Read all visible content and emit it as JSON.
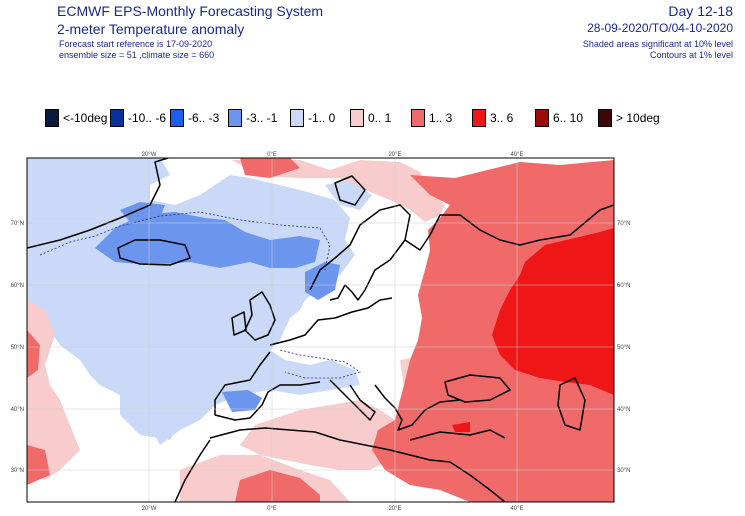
{
  "header": {
    "title": "ECMWF EPS-Monthly Forecasting System",
    "subtitle": "2-meter Temperature anomaly",
    "forecast_ref": "Forecast start reference is 17-09-2020",
    "ensemble": "ensemble size = 51  ,climate size = 660",
    "day_range": "Day 12-18",
    "date_range": "28-09-2020/TO/04-10-2020",
    "significance": "Shaded areas significant at 10% level",
    "contours": "Contours at 1% level"
  },
  "legend": [
    {
      "label": "<-10deg",
      "color": "#0b1a3a"
    },
    {
      "label": "-10.. -6",
      "color": "#0a2f9e"
    },
    {
      "label": "-6.. -3",
      "color": "#1c5ff0"
    },
    {
      "label": "-3.. -1",
      "color": "#6c95ee"
    },
    {
      "label": "-1.. 0",
      "color": "#c9d9f7"
    },
    {
      "label": "0.. 1",
      "color": "#f8cccc"
    },
    {
      "label": "1.. 3",
      "color": "#f06a6a"
    },
    {
      "label": "3.. 6",
      "color": "#ee1616"
    },
    {
      "label": "6.. 10",
      "color": "#9c0a0a"
    },
    {
      "label": "> 10deg",
      "color": "#3c0707"
    }
  ],
  "map": {
    "lon_labels": [
      "20°W",
      "0°E",
      "20°E",
      "40°E"
    ],
    "lat_labels": [
      "70°N",
      "60°N",
      "50°N",
      "40°N",
      "30°N"
    ]
  }
}
